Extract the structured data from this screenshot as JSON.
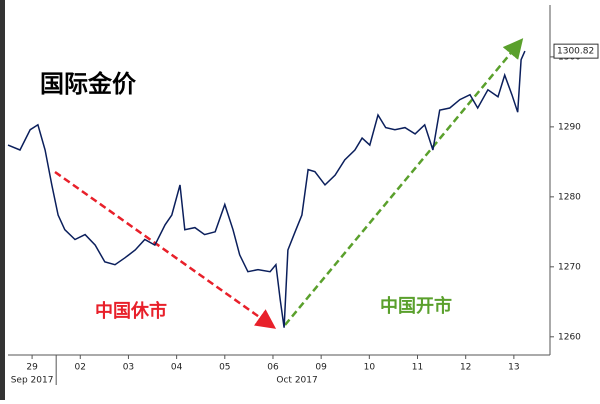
{
  "chart_data": {
    "type": "line",
    "title": "国际金价",
    "annotations": [
      "中国休市",
      "中国开市"
    ],
    "x": [
      -0.5,
      -0.25,
      -0.04,
      0.12,
      0.27,
      0.41,
      0.54,
      0.68,
      0.89,
      1.1,
      1.31,
      1.51,
      1.72,
      1.93,
      2.14,
      2.34,
      2.55,
      2.76,
      2.9,
      3.07,
      3.17,
      3.38,
      3.58,
      3.8,
      4.0,
      4.17,
      4.31,
      4.48,
      4.69,
      4.94,
      5.06,
      5.15,
      5.23,
      5.31,
      5.46,
      5.6,
      5.73,
      5.87,
      6.08,
      6.29,
      6.49,
      6.7,
      6.85,
      7.01,
      7.18,
      7.34,
      7.53,
      7.74,
      7.95,
      8.15,
      8.32,
      8.46,
      8.67,
      8.88,
      9.09,
      9.25,
      9.46,
      9.67,
      9.81,
      9.96,
      10.08,
      10.15,
      10.23
    ],
    "series": [
      {
        "color": "#0b1f5c",
        "values": [
          1287.4,
          1286.7,
          1289.6,
          1290.3,
          1286.7,
          1281.7,
          1277.4,
          1275.3,
          1273.9,
          1274.6,
          1273.1,
          1270.7,
          1270.3,
          1271.3,
          1272.4,
          1273.9,
          1273.1,
          1276,
          1277.4,
          1281.7,
          1275.3,
          1275.6,
          1274.6,
          1275,
          1278.9,
          1275.3,
          1271.7,
          1269.3,
          1269.6,
          1269.3,
          1270.3,
          1265.3,
          1261.3,
          1272.4,
          1275,
          1277.4,
          1283.9,
          1283.6,
          1281.7,
          1283.1,
          1285.3,
          1286.7,
          1288.4,
          1287.4,
          1291.7,
          1289.9,
          1289.6,
          1289.9,
          1289,
          1290.3,
          1286.7,
          1292.4,
          1292.7,
          1293.9,
          1294.6,
          1292.7,
          1295.3,
          1294.3,
          1297.4,
          1294.6,
          1292.1,
          1299.6,
          1300.82
        ]
      }
    ],
    "xlim": [
      -0.5,
      10.75
    ],
    "xticks": [
      {
        "value": 0,
        "label": "29"
      },
      {
        "value": 1,
        "label": "02"
      },
      {
        "value": 2,
        "label": "03"
      },
      {
        "value": 3,
        "label": "04"
      },
      {
        "value": 4,
        "label": "05"
      },
      {
        "value": 5,
        "label": "06"
      },
      {
        "value": 6,
        "label": "09"
      },
      {
        "value": 7,
        "label": "10"
      },
      {
        "value": 8,
        "label": "11"
      },
      {
        "value": 9,
        "label": "12"
      },
      {
        "value": 10,
        "label": "13"
      }
    ],
    "xgroups": [
      {
        "value": 0,
        "label": "Sep 2017"
      },
      {
        "value": 5.5,
        "label": "Oct 2017"
      }
    ],
    "ylim": [
      1257.4,
      1306.7
    ],
    "yticks": [
      1260,
      1270,
      1280,
      1290,
      1300
    ],
    "grid": false
  }
}
